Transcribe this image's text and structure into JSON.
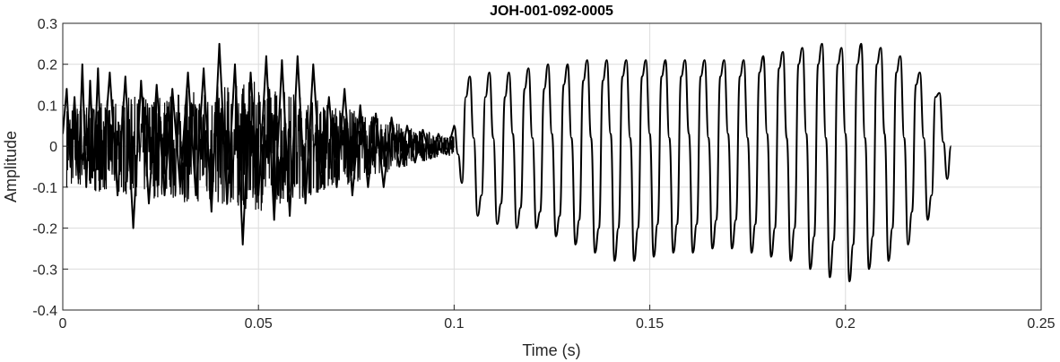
{
  "chart_data": {
    "type": "line",
    "title": "JOH-001-092-0005",
    "xlabel": "Time (s)",
    "ylabel": "Amplitude",
    "xlim": [
      0,
      0.25
    ],
    "ylim": [
      -0.4,
      0.3
    ],
    "xticks": [
      0,
      0.05,
      0.1,
      0.15,
      0.2,
      0.25
    ],
    "xtick_labels": [
      "0",
      "0.05",
      "0.1",
      "0.15",
      "0.2",
      "0.25"
    ],
    "yticks": [
      -0.4,
      -0.3,
      -0.2,
      -0.1,
      0,
      0.1,
      0.2,
      0.3
    ],
    "ytick_labels": [
      "-0.4",
      "-0.3",
      "-0.2",
      "-0.1",
      "0",
      "0.1",
      "0.2",
      "0.3"
    ],
    "grid": true,
    "line_color": "#000000",
    "series": [
      {
        "x": [
          0,
          0.001,
          0.002,
          0.003,
          0.004,
          0.005,
          0.006,
          0.007,
          0.008,
          0.009,
          0.01,
          0.012,
          0.014,
          0.016,
          0.018,
          0.02,
          0.022,
          0.024,
          0.026,
          0.028,
          0.03,
          0.032,
          0.034,
          0.036,
          0.038,
          0.04,
          0.042,
          0.044,
          0.046,
          0.048,
          0.05,
          0.052,
          0.054,
          0.056,
          0.058,
          0.06,
          0.062,
          0.064,
          0.066,
          0.068,
          0.07,
          0.072,
          0.074,
          0.076,
          0.078,
          0.08,
          0.082,
          0.084,
          0.086,
          0.088,
          0.09,
          0.092,
          0.094,
          0.096,
          0.098,
          0.1,
          0.101,
          0.102,
          0.103,
          0.104,
          0.105,
          0.106,
          0.107,
          0.108,
          0.109,
          0.11,
          0.111,
          0.112,
          0.113,
          0.114,
          0.115,
          0.116,
          0.117,
          0.118,
          0.119,
          0.12,
          0.121,
          0.122,
          0.123,
          0.124,
          0.125,
          0.126,
          0.127,
          0.128,
          0.129,
          0.13,
          0.131,
          0.132,
          0.133,
          0.134,
          0.135,
          0.136,
          0.137,
          0.138,
          0.139,
          0.14,
          0.141,
          0.142,
          0.143,
          0.144,
          0.145,
          0.146,
          0.147,
          0.148,
          0.149,
          0.15,
          0.151,
          0.152,
          0.153,
          0.154,
          0.155,
          0.156,
          0.157,
          0.158,
          0.159,
          0.16,
          0.161,
          0.162,
          0.163,
          0.164,
          0.165,
          0.166,
          0.167,
          0.168,
          0.169,
          0.17,
          0.171,
          0.172,
          0.173,
          0.174,
          0.175,
          0.176,
          0.177,
          0.178,
          0.179,
          0.18,
          0.181,
          0.182,
          0.183,
          0.184,
          0.185,
          0.186,
          0.187,
          0.188,
          0.189,
          0.19,
          0.191,
          0.192,
          0.193,
          0.194,
          0.195,
          0.196,
          0.197,
          0.198,
          0.199,
          0.2,
          0.201,
          0.202,
          0.203,
          0.204,
          0.205,
          0.206,
          0.207,
          0.208,
          0.209,
          0.21,
          0.211,
          0.212,
          0.213,
          0.214,
          0.215,
          0.216,
          0.217,
          0.218,
          0.219,
          0.22,
          0.221,
          0.222,
          0.223,
          0.224,
          0.225,
          0.226,
          0.227
        ],
        "y": [
          0.03,
          0.14,
          -0.05,
          0.12,
          -0.08,
          0.2,
          -0.1,
          0.16,
          -0.06,
          0.19,
          -0.08,
          0.18,
          -0.12,
          0.17,
          -0.2,
          0.16,
          -0.14,
          0.15,
          -0.12,
          0.14,
          -0.1,
          0.18,
          -0.12,
          0.19,
          -0.16,
          0.25,
          -0.14,
          0.2,
          -0.24,
          0.18,
          -0.12,
          0.22,
          -0.18,
          0.21,
          -0.17,
          0.22,
          -0.14,
          0.2,
          -0.1,
          0.12,
          -0.1,
          0.14,
          -0.12,
          0.1,
          -0.1,
          0.08,
          -0.1,
          0.07,
          -0.05,
          0.05,
          -0.04,
          0.04,
          -0.03,
          0.03,
          -0.02,
          0.05,
          -0.02,
          -0.09,
          0.12,
          0.17,
          0.02,
          -0.17,
          -0.12,
          0.12,
          0.18,
          0.02,
          -0.19,
          -0.14,
          0.12,
          0.18,
          0.03,
          -0.2,
          -0.15,
          0.14,
          0.19,
          0.02,
          -0.2,
          -0.16,
          0.14,
          0.2,
          0.03,
          -0.22,
          -0.17,
          0.15,
          0.2,
          0.02,
          -0.24,
          -0.18,
          0.16,
          0.21,
          0.02,
          -0.26,
          -0.2,
          0.16,
          0.21,
          0.03,
          -0.28,
          -0.2,
          0.17,
          0.21,
          0.02,
          -0.28,
          -0.2,
          0.17,
          0.21,
          0.03,
          -0.27,
          -0.19,
          0.17,
          0.21,
          0.02,
          -0.26,
          -0.19,
          0.17,
          0.21,
          0.03,
          -0.26,
          -0.19,
          0.17,
          0.21,
          0.02,
          -0.25,
          -0.18,
          0.17,
          0.21,
          0.03,
          -0.25,
          -0.18,
          0.17,
          0.21,
          0.02,
          -0.26,
          -0.19,
          0.18,
          0.22,
          0.03,
          -0.27,
          -0.2,
          0.19,
          0.23,
          0.02,
          -0.28,
          -0.2,
          0.2,
          0.24,
          0.03,
          -0.3,
          -0.22,
          0.2,
          0.25,
          0.02,
          -0.32,
          -0.23,
          0.2,
          0.24,
          0.03,
          -0.33,
          -0.24,
          0.2,
          0.25,
          0.02,
          -0.3,
          -0.22,
          0.2,
          0.24,
          0.03,
          -0.28,
          -0.2,
          0.18,
          0.22,
          0.02,
          -0.24,
          -0.16,
          0.15,
          0.18,
          0.02,
          -0.18,
          -0.12,
          0.12,
          0.13,
          0.01,
          -0.08,
          0.0
        ]
      }
    ]
  }
}
